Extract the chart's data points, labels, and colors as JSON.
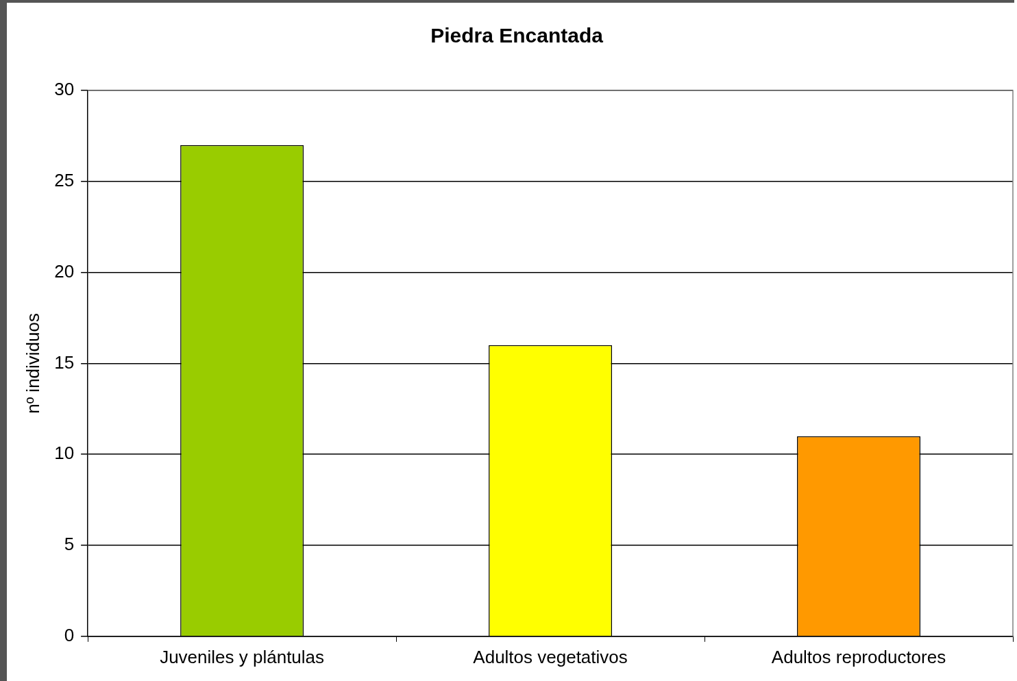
{
  "chart_data": {
    "type": "bar",
    "title": "Piedra Encantada",
    "ylabel": "nº individuos",
    "categories": [
      "Juveniles y plántulas",
      "Adultos vegetativos",
      "Adultos reproductores"
    ],
    "values": [
      27,
      16,
      11
    ],
    "colors": [
      "#99cc00",
      "#ffff00",
      "#ff9900"
    ],
    "ylim": [
      0,
      30
    ],
    "yticks": [
      0,
      5,
      10,
      15,
      20,
      25,
      30
    ],
    "grid": "y",
    "legend": false
  }
}
